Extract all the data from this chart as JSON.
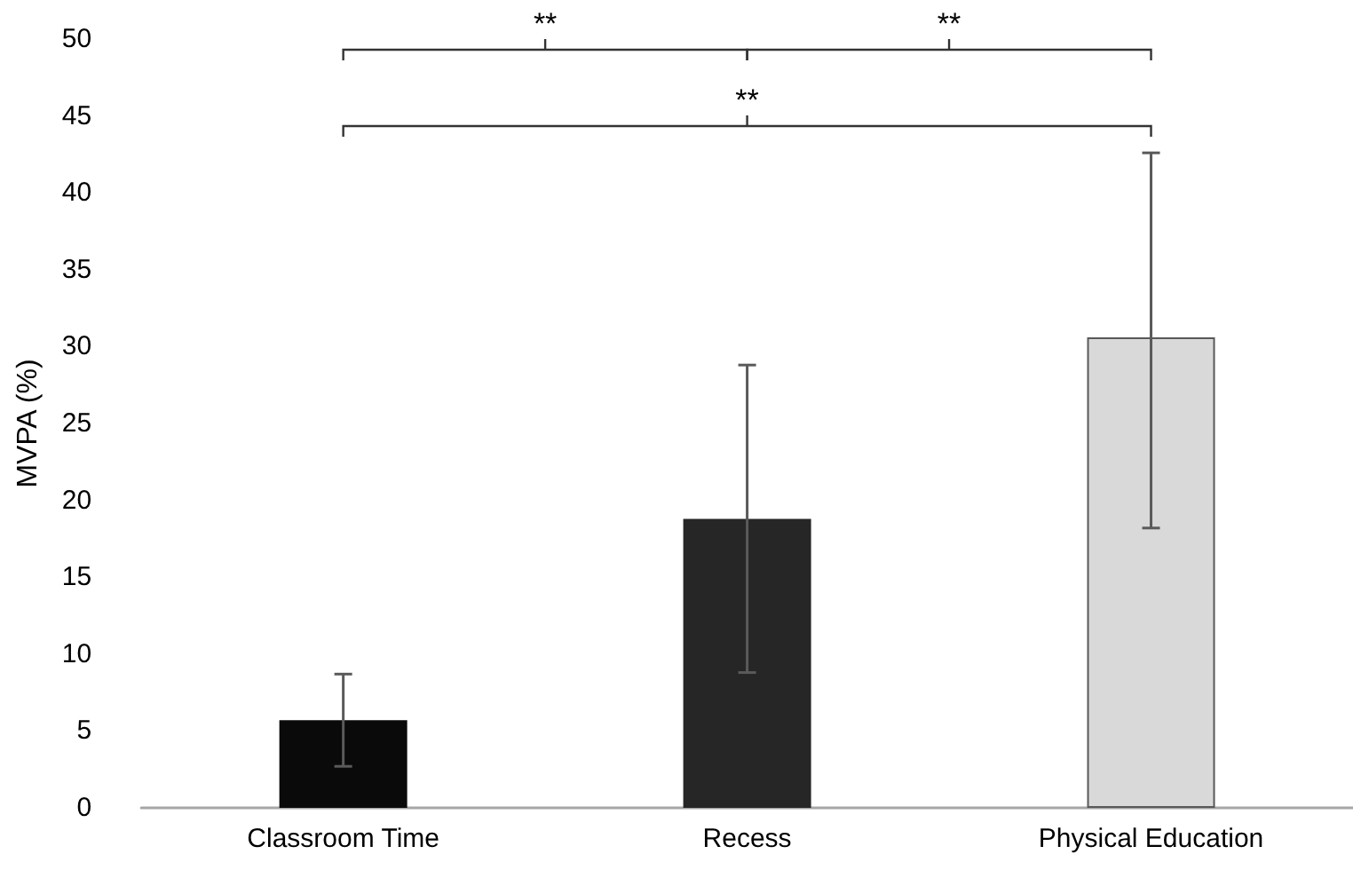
{
  "chart_data": {
    "type": "bar",
    "ylabel": "MVPA (%)",
    "categories": [
      "Classroom Time",
      "Recess",
      "Physical Education"
    ],
    "values": [
      5.7,
      18.8,
      30.6
    ],
    "colors": [
      "#0a0a0a",
      "#262626",
      "#d9d9d9"
    ],
    "errors": [
      [
        2.7,
        8.7
      ],
      [
        8.8,
        28.8
      ],
      [
        18.2,
        42.6
      ]
    ],
    "ylim": [
      0,
      50
    ],
    "yticks": [
      0,
      5,
      10,
      15,
      20,
      25,
      30,
      35,
      40,
      45,
      50
    ],
    "grid": false,
    "annotations": [
      "**",
      "**",
      "**"
    ]
  }
}
